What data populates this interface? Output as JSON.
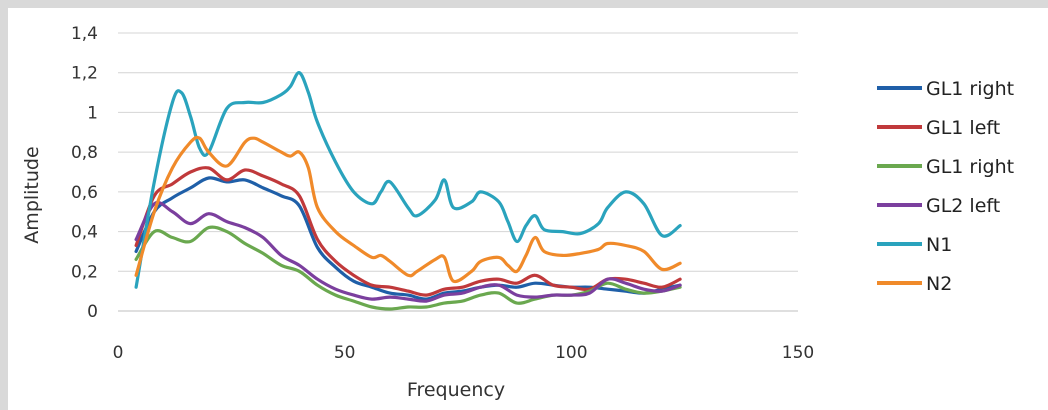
{
  "chart_data": {
    "type": "line",
    "title": "",
    "xlabel": "Frequency",
    "ylabel": "Amplitude",
    "xlim": [
      0,
      150
    ],
    "ylim": [
      0,
      1.4
    ],
    "xticks": [
      0,
      50,
      100,
      150
    ],
    "xtick_labels": [
      "0",
      "50",
      "100",
      "150"
    ],
    "yticks": [
      0,
      0.2,
      0.4,
      0.6,
      0.8,
      1.0,
      1.2,
      1.4
    ],
    "ytick_labels": [
      "0",
      "0,2",
      "0,4",
      "0,6",
      "0,8",
      "1",
      "1,2",
      "1,4"
    ],
    "grid": "horizontal",
    "legend_position": "right",
    "series": [
      {
        "name": "GL1 right",
        "color": "#1f5fa8",
        "x": [
          4,
          8,
          12,
          16,
          20,
          24,
          28,
          32,
          36,
          40,
          44,
          48,
          52,
          56,
          60,
          64,
          68,
          72,
          76,
          80,
          84,
          88,
          92,
          96,
          100,
          104,
          108,
          112,
          116,
          120,
          124
        ],
        "y": [
          0.3,
          0.5,
          0.57,
          0.62,
          0.67,
          0.65,
          0.66,
          0.62,
          0.58,
          0.53,
          0.32,
          0.22,
          0.15,
          0.12,
          0.09,
          0.08,
          0.06,
          0.09,
          0.1,
          0.12,
          0.13,
          0.12,
          0.14,
          0.13,
          0.12,
          0.12,
          0.11,
          0.1,
          0.09,
          0.11,
          0.13
        ]
      },
      {
        "name": "GL1 left",
        "color": "#c0393b",
        "x": [
          4,
          8,
          12,
          16,
          20,
          24,
          28,
          32,
          36,
          40,
          44,
          48,
          52,
          56,
          60,
          64,
          68,
          72,
          76,
          80,
          84,
          88,
          92,
          96,
          100,
          104,
          108,
          112,
          116,
          120,
          124
        ],
        "y": [
          0.33,
          0.58,
          0.64,
          0.7,
          0.72,
          0.66,
          0.71,
          0.68,
          0.64,
          0.58,
          0.36,
          0.25,
          0.18,
          0.13,
          0.12,
          0.1,
          0.08,
          0.11,
          0.12,
          0.15,
          0.16,
          0.14,
          0.18,
          0.13,
          0.12,
          0.11,
          0.16,
          0.16,
          0.14,
          0.12,
          0.16
        ]
      },
      {
        "name": "GL1 right",
        "color": "#6aa84f",
        "x": [
          4,
          8,
          12,
          16,
          20,
          24,
          28,
          32,
          36,
          40,
          44,
          48,
          52,
          56,
          60,
          64,
          68,
          72,
          76,
          80,
          84,
          88,
          92,
          96,
          100,
          104,
          108,
          112,
          116,
          120,
          124
        ],
        "y": [
          0.26,
          0.4,
          0.37,
          0.35,
          0.42,
          0.4,
          0.34,
          0.29,
          0.23,
          0.2,
          0.13,
          0.08,
          0.05,
          0.02,
          0.01,
          0.02,
          0.02,
          0.04,
          0.05,
          0.08,
          0.09,
          0.04,
          0.06,
          0.08,
          0.08,
          0.1,
          0.14,
          0.11,
          0.09,
          0.1,
          0.12
        ]
      },
      {
        "name": "GL2 left",
        "color": "#7b3f9e",
        "x": [
          4,
          8,
          12,
          16,
          20,
          24,
          28,
          32,
          36,
          40,
          44,
          48,
          52,
          56,
          60,
          64,
          68,
          72,
          76,
          80,
          84,
          88,
          92,
          96,
          100,
          104,
          108,
          112,
          116,
          120,
          124
        ],
        "y": [
          0.36,
          0.54,
          0.5,
          0.44,
          0.49,
          0.45,
          0.42,
          0.37,
          0.28,
          0.23,
          0.16,
          0.11,
          0.08,
          0.06,
          0.07,
          0.06,
          0.05,
          0.08,
          0.09,
          0.12,
          0.13,
          0.08,
          0.07,
          0.08,
          0.08,
          0.09,
          0.16,
          0.14,
          0.11,
          0.1,
          0.13
        ]
      },
      {
        "name": "N1",
        "color": "#2aa3bd",
        "x": [
          4,
          8,
          12,
          14,
          16,
          18,
          20,
          24,
          28,
          32,
          36,
          38,
          40,
          42,
          44,
          48,
          52,
          56,
          58,
          60,
          64,
          66,
          70,
          72,
          74,
          78,
          80,
          84,
          86,
          88,
          90,
          92,
          94,
          98,
          102,
          106,
          108,
          112,
          116,
          120,
          124
        ],
        "y": [
          0.12,
          0.65,
          1.05,
          1.1,
          0.98,
          0.82,
          0.8,
          1.02,
          1.05,
          1.05,
          1.09,
          1.13,
          1.2,
          1.1,
          0.95,
          0.75,
          0.6,
          0.54,
          0.6,
          0.65,
          0.52,
          0.48,
          0.56,
          0.66,
          0.52,
          0.55,
          0.6,
          0.55,
          0.45,
          0.35,
          0.43,
          0.48,
          0.41,
          0.4,
          0.39,
          0.44,
          0.52,
          0.6,
          0.54,
          0.38,
          0.43
        ]
      },
      {
        "name": "N2",
        "color": "#f08a2a",
        "x": [
          4,
          8,
          12,
          16,
          18,
          20,
          24,
          28,
          30,
          32,
          36,
          38,
          40,
          42,
          44,
          48,
          52,
          56,
          58,
          60,
          64,
          66,
          70,
          72,
          74,
          78,
          80,
          84,
          86,
          88,
          90,
          92,
          94,
          98,
          102,
          106,
          108,
          112,
          116,
          120,
          124
        ],
        "y": [
          0.18,
          0.5,
          0.72,
          0.85,
          0.87,
          0.8,
          0.73,
          0.85,
          0.87,
          0.85,
          0.8,
          0.78,
          0.8,
          0.72,
          0.52,
          0.4,
          0.33,
          0.27,
          0.28,
          0.25,
          0.18,
          0.2,
          0.26,
          0.27,
          0.15,
          0.2,
          0.25,
          0.27,
          0.23,
          0.2,
          0.28,
          0.37,
          0.3,
          0.28,
          0.29,
          0.31,
          0.34,
          0.33,
          0.3,
          0.21,
          0.24
        ]
      }
    ]
  }
}
